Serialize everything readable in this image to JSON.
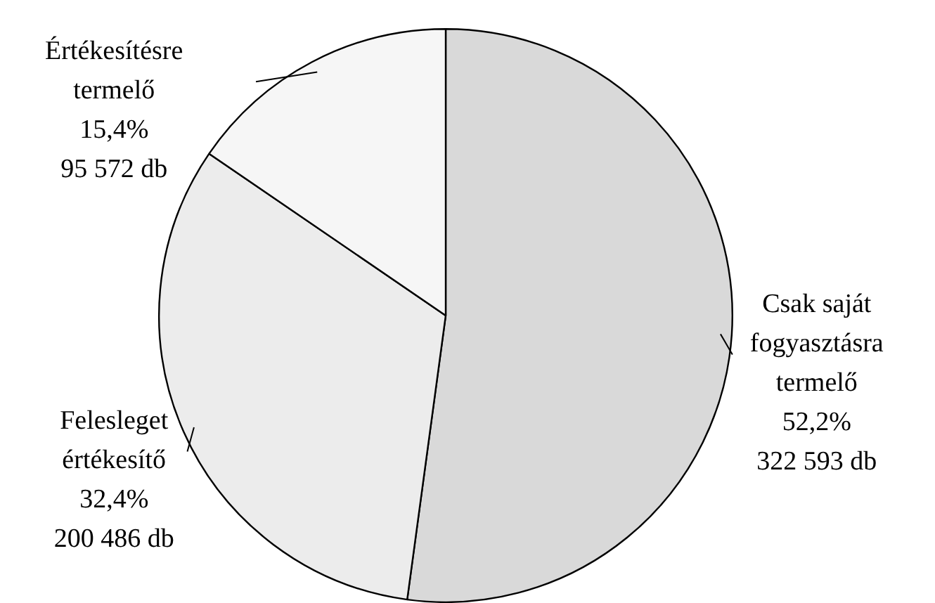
{
  "chart_data": {
    "type": "pie",
    "categories": [
      "Csak saját fogyasztásra termelő",
      "Felesleget értékesítő",
      "Értékesítésre termelő"
    ],
    "values": [
      322593,
      200486,
      95572
    ],
    "value_labels": [
      "52,2%\n322 593 db",
      "32,4%\n200 486 db",
      "15,4%\n95 572 db"
    ],
    "colors": [
      "#d9d9d9",
      "#ececec",
      "#f6f6f6"
    ],
    "legend": false
  }
}
